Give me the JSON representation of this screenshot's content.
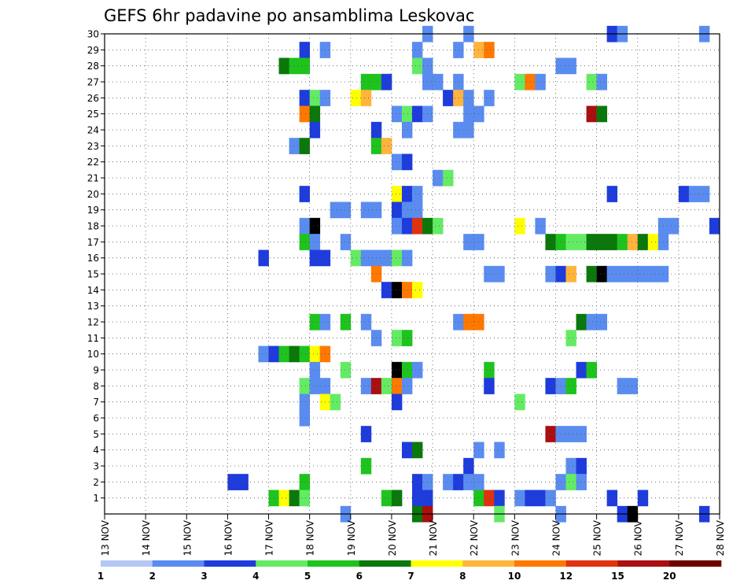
{
  "chart_data": {
    "type": "heatmap",
    "title": "GEFS 6hr padavine po ansamblima Leskovac",
    "xlabel": "",
    "ylabel": "",
    "x_tick_labels": [
      "13 NOV",
      "14 NOV",
      "15 NOV",
      "16 NOV",
      "17 NOV",
      "18 NOV",
      "19 NOV",
      "20 NOV",
      "21 NOV",
      "22 NOV",
      "23 NOV",
      "24 NOV",
      "25 NOV",
      "26 NOV",
      "27 NOV",
      "28 NOV"
    ],
    "x_unit": "6-hour step starting 13 NOV 00Z",
    "x_range": [
      0,
      60
    ],
    "y_tick_labels": [
      "1",
      "2",
      "3",
      "4",
      "5",
      "6",
      "7",
      "8",
      "9",
      "10",
      "11",
      "12",
      "13",
      "14",
      "15",
      "16",
      "17",
      "18",
      "19",
      "20",
      "21",
      "22",
      "23",
      "24",
      "25",
      "26",
      "27",
      "28",
      "29",
      "30"
    ],
    "y_range": [
      0,
      30
    ],
    "grid": true,
    "colorbar": {
      "labels": [
        "1",
        "2",
        "3",
        "4",
        "5",
        "6",
        "7",
        "8",
        "10",
        "12",
        "15",
        "20"
      ],
      "colors": [
        "#b4c8f5",
        "#5a8cf0",
        "#1e3cdc",
        "#64eb64",
        "#1ec31e",
        "#0a780a",
        "#ffff00",
        "#ffb43c",
        "#ff7800",
        "#e1320f",
        "#aa0f0f",
        "#6e0000"
      ]
    },
    "cells": [
      [
        31,
        30,
        1
      ],
      [
        35,
        30,
        1
      ],
      [
        49,
        30,
        2
      ],
      [
        50,
        30,
        1
      ],
      [
        58,
        30,
        1
      ],
      [
        19,
        29,
        2
      ],
      [
        21,
        29,
        1
      ],
      [
        30,
        29,
        1
      ],
      [
        34,
        29,
        1
      ],
      [
        36,
        29,
        7
      ],
      [
        37,
        29,
        8
      ],
      [
        17,
        28,
        5
      ],
      [
        18,
        28,
        4
      ],
      [
        19,
        28,
        4
      ],
      [
        30,
        28,
        3
      ],
      [
        31,
        28,
        1
      ],
      [
        44,
        28,
        1
      ],
      [
        45,
        28,
        1
      ],
      [
        25,
        27,
        4
      ],
      [
        26,
        27,
        4
      ],
      [
        27,
        27,
        2
      ],
      [
        31,
        27,
        1
      ],
      [
        32,
        27,
        1
      ],
      [
        34,
        27,
        1
      ],
      [
        40,
        27,
        3
      ],
      [
        41,
        27,
        8
      ],
      [
        42,
        27,
        1
      ],
      [
        47,
        27,
        3
      ],
      [
        48,
        27,
        1
      ],
      [
        19,
        26,
        2
      ],
      [
        20,
        26,
        3
      ],
      [
        21,
        26,
        1
      ],
      [
        24,
        26,
        6
      ],
      [
        25,
        26,
        7
      ],
      [
        33,
        26,
        2
      ],
      [
        34,
        26,
        7
      ],
      [
        35,
        26,
        1
      ],
      [
        37,
        26,
        1
      ],
      [
        19,
        25,
        8
      ],
      [
        20,
        25,
        5
      ],
      [
        28,
        25,
        1
      ],
      [
        29,
        25,
        3
      ],
      [
        30,
        25,
        2
      ],
      [
        31,
        25,
        1
      ],
      [
        35,
        25,
        1
      ],
      [
        36,
        25,
        1
      ],
      [
        47,
        25,
        10
      ],
      [
        48,
        25,
        5
      ],
      [
        20,
        24,
        2
      ],
      [
        26,
        24,
        2
      ],
      [
        29,
        24,
        1
      ],
      [
        34,
        24,
        1
      ],
      [
        35,
        24,
        1
      ],
      [
        18,
        23,
        1
      ],
      [
        19,
        23,
        5
      ],
      [
        26,
        23,
        4
      ],
      [
        27,
        23,
        7
      ],
      [
        28,
        22,
        1
      ],
      [
        29,
        22,
        2
      ],
      [
        32,
        21,
        1
      ],
      [
        33,
        21,
        3
      ],
      [
        19,
        20,
        2
      ],
      [
        28,
        20,
        6
      ],
      [
        29,
        20,
        2
      ],
      [
        30,
        20,
        1
      ],
      [
        49,
        20,
        2
      ],
      [
        56,
        20,
        2
      ],
      [
        57,
        20,
        1
      ],
      [
        58,
        20,
        1
      ],
      [
        22,
        19,
        1
      ],
      [
        23,
        19,
        1
      ],
      [
        25,
        19,
        1
      ],
      [
        26,
        19,
        1
      ],
      [
        28,
        19,
        2
      ],
      [
        29,
        19,
        1
      ],
      [
        30,
        19,
        1
      ],
      [
        19,
        18,
        1
      ],
      [
        20,
        18,
        12
      ],
      [
        28,
        18,
        1
      ],
      [
        29,
        18,
        2
      ],
      [
        30,
        18,
        9
      ],
      [
        31,
        18,
        5
      ],
      [
        32,
        18,
        3
      ],
      [
        40,
        18,
        6
      ],
      [
        42,
        18,
        1
      ],
      [
        54,
        18,
        1
      ],
      [
        55,
        18,
        1
      ],
      [
        59,
        18,
        2
      ],
      [
        19,
        17,
        4
      ],
      [
        20,
        17,
        1
      ],
      [
        23,
        17,
        1
      ],
      [
        35,
        17,
        1
      ],
      [
        36,
        17,
        1
      ],
      [
        43,
        17,
        5
      ],
      [
        44,
        17,
        4
      ],
      [
        45,
        17,
        3
      ],
      [
        46,
        17,
        3
      ],
      [
        47,
        17,
        5
      ],
      [
        48,
        17,
        5
      ],
      [
        49,
        17,
        5
      ],
      [
        50,
        17,
        4
      ],
      [
        51,
        17,
        7
      ],
      [
        52,
        17,
        5
      ],
      [
        53,
        17,
        6
      ],
      [
        54,
        17,
        1
      ],
      [
        15,
        16,
        2
      ],
      [
        20,
        16,
        2
      ],
      [
        21,
        16,
        2
      ],
      [
        24,
        16,
        3
      ],
      [
        25,
        16,
        1
      ],
      [
        26,
        16,
        1
      ],
      [
        27,
        16,
        1
      ],
      [
        28,
        16,
        3
      ],
      [
        29,
        16,
        1
      ],
      [
        26,
        15,
        8
      ],
      [
        37,
        15,
        1
      ],
      [
        38,
        15,
        1
      ],
      [
        43,
        15,
        1
      ],
      [
        44,
        15,
        2
      ],
      [
        45,
        15,
        7
      ],
      [
        47,
        15,
        5
      ],
      [
        48,
        15,
        12
      ],
      [
        49,
        15,
        1
      ],
      [
        50,
        15,
        1
      ],
      [
        51,
        15,
        1
      ],
      [
        52,
        15,
        1
      ],
      [
        53,
        15,
        1
      ],
      [
        54,
        15,
        1
      ],
      [
        27,
        14,
        2
      ],
      [
        28,
        14,
        12
      ],
      [
        29,
        14,
        8
      ],
      [
        30,
        14,
        6
      ],
      [
        20,
        12,
        4
      ],
      [
        21,
        12,
        1
      ],
      [
        23,
        12,
        4
      ],
      [
        25,
        12,
        1
      ],
      [
        34,
        12,
        1
      ],
      [
        35,
        12,
        8
      ],
      [
        36,
        12,
        8
      ],
      [
        46,
        12,
        5
      ],
      [
        47,
        12,
        1
      ],
      [
        48,
        12,
        1
      ],
      [
        26,
        11,
        1
      ],
      [
        28,
        11,
        3
      ],
      [
        29,
        11,
        4
      ],
      [
        45,
        11,
        3
      ],
      [
        15,
        10,
        1
      ],
      [
        16,
        10,
        2
      ],
      [
        17,
        10,
        4
      ],
      [
        18,
        10,
        5
      ],
      [
        19,
        10,
        4
      ],
      [
        20,
        10,
        6
      ],
      [
        21,
        10,
        8
      ],
      [
        20,
        9,
        1
      ],
      [
        23,
        9,
        3
      ],
      [
        28,
        9,
        12
      ],
      [
        29,
        9,
        4
      ],
      [
        30,
        9,
        1
      ],
      [
        37,
        9,
        4
      ],
      [
        46,
        9,
        2
      ],
      [
        47,
        9,
        4
      ],
      [
        19,
        8,
        3
      ],
      [
        20,
        8,
        1
      ],
      [
        21,
        8,
        1
      ],
      [
        25,
        8,
        1
      ],
      [
        26,
        8,
        10
      ],
      [
        27,
        8,
        3
      ],
      [
        28,
        8,
        8
      ],
      [
        29,
        8,
        1
      ],
      [
        37,
        8,
        2
      ],
      [
        43,
        8,
        2
      ],
      [
        44,
        8,
        1
      ],
      [
        45,
        8,
        4
      ],
      [
        50,
        8,
        1
      ],
      [
        51,
        8,
        1
      ],
      [
        19,
        7,
        1
      ],
      [
        21,
        7,
        6
      ],
      [
        22,
        7,
        3
      ],
      [
        28,
        7,
        2
      ],
      [
        40,
        7,
        3
      ],
      [
        19,
        6,
        1
      ],
      [
        25,
        5,
        2
      ],
      [
        43,
        5,
        10
      ],
      [
        44,
        5,
        1
      ],
      [
        45,
        5,
        1
      ],
      [
        46,
        5,
        1
      ],
      [
        29,
        4,
        2
      ],
      [
        30,
        4,
        5
      ],
      [
        36,
        4,
        1
      ],
      [
        38,
        4,
        1
      ],
      [
        25,
        3,
        4
      ],
      [
        35,
        3,
        2
      ],
      [
        45,
        3,
        1
      ],
      [
        46,
        3,
        2
      ],
      [
        12,
        2,
        2
      ],
      [
        13,
        2,
        2
      ],
      [
        19,
        2,
        4
      ],
      [
        30,
        2,
        2
      ],
      [
        31,
        2,
        1
      ],
      [
        33,
        2,
        1
      ],
      [
        34,
        2,
        2
      ],
      [
        35,
        2,
        1
      ],
      [
        36,
        2,
        1
      ],
      [
        44,
        2,
        1
      ],
      [
        45,
        2,
        3
      ],
      [
        46,
        2,
        1
      ],
      [
        16,
        1,
        4
      ],
      [
        17,
        1,
        6
      ],
      [
        18,
        1,
        5
      ],
      [
        19,
        1,
        3
      ],
      [
        27,
        1,
        4
      ],
      [
        28,
        1,
        5
      ],
      [
        30,
        1,
        2
      ],
      [
        31,
        1,
        2
      ],
      [
        36,
        1,
        4
      ],
      [
        37,
        1,
        9
      ],
      [
        38,
        1,
        2
      ],
      [
        40,
        1,
        1
      ],
      [
        41,
        1,
        2
      ],
      [
        42,
        1,
        2
      ],
      [
        43,
        1,
        1
      ],
      [
        49,
        1,
        2
      ],
      [
        52,
        1,
        2
      ],
      [
        23,
        0,
        1
      ],
      [
        30,
        0,
        5
      ],
      [
        31,
        0,
        10
      ],
      [
        38,
        0,
        3
      ],
      [
        44,
        0,
        1
      ],
      [
        50,
        0,
        2
      ],
      [
        51,
        0,
        12
      ],
      [
        58,
        0,
        2
      ]
    ]
  }
}
